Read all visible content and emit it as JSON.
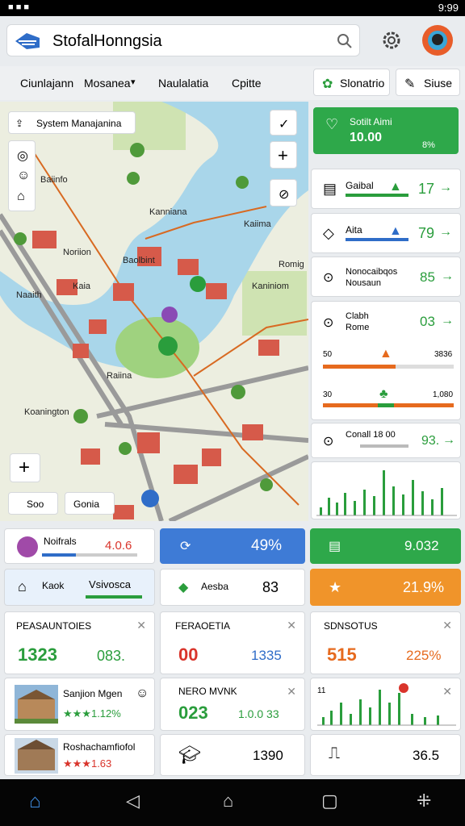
{
  "status_bar": {
    "time": "9:99"
  },
  "search": {
    "query": "StofalHonngsia"
  },
  "tabs": [
    "Ciunlajann",
    "Mosanea",
    "Naulalatia",
    "Cpitte"
  ],
  "actions": [
    "Slonatrio",
    "Siuse"
  ],
  "map": {
    "panel_title": "System Manajanina",
    "labels": [
      "Baiinfo",
      "Kanniana",
      "Noriion",
      "Kaiima",
      "Baolbint",
      "Kaia",
      "Romig",
      "Naaith",
      "Kaniniom",
      "Raiina",
      "Koanington"
    ],
    "buttons": [
      "Soo",
      "Gonia"
    ]
  },
  "summary": {
    "title": "Sotilt Aimi",
    "value": "10.00",
    "change": "8%"
  },
  "metrics": [
    {
      "label": "Gaibal",
      "value": "17"
    },
    {
      "label": "Aita",
      "value": "79"
    },
    {
      "label": "Nonocaibqos",
      "sublabel": "Nousaun",
      "value": "85"
    },
    {
      "label": "Clabh",
      "sublabel": "Rome",
      "value": "03"
    }
  ],
  "progress": [
    {
      "label": "50",
      "value": "3836"
    },
    {
      "label": "30",
      "value": "1,080"
    }
  ],
  "contact": {
    "label": "Conall 18 00",
    "value": "93."
  },
  "tiles": [
    {
      "label": "Noifrals",
      "value": "4.0.6"
    },
    {
      "value": "49%"
    },
    {
      "value": "9.032"
    },
    {
      "label": "Kaok",
      "value": "Vsivosca"
    },
    {
      "label": "Aesba",
      "value": "83"
    },
    {
      "value": "21.9%"
    }
  ],
  "cards": [
    {
      "title": "PEASAUNTOIES",
      "values": [
        "1323",
        "083."
      ]
    },
    {
      "title": "FERAOETIA",
      "values": [
        "00",
        "1335"
      ]
    },
    {
      "title": "SDNSOTUS",
      "values": [
        "515",
        "225%"
      ]
    }
  ],
  "places": [
    {
      "name": "Sanjion Mgen",
      "rating": "★★★1.12%"
    },
    {
      "name": "Roshachamfiofol",
      "rating": "★★★1.63"
    }
  ],
  "stats": [
    {
      "title": "NERO MVNK",
      "values": [
        "023",
        "1.0.0 33"
      ]
    },
    {
      "value": "1390"
    },
    {
      "value": "36.5"
    }
  ],
  "chart_card": {
    "label": "11"
  }
}
